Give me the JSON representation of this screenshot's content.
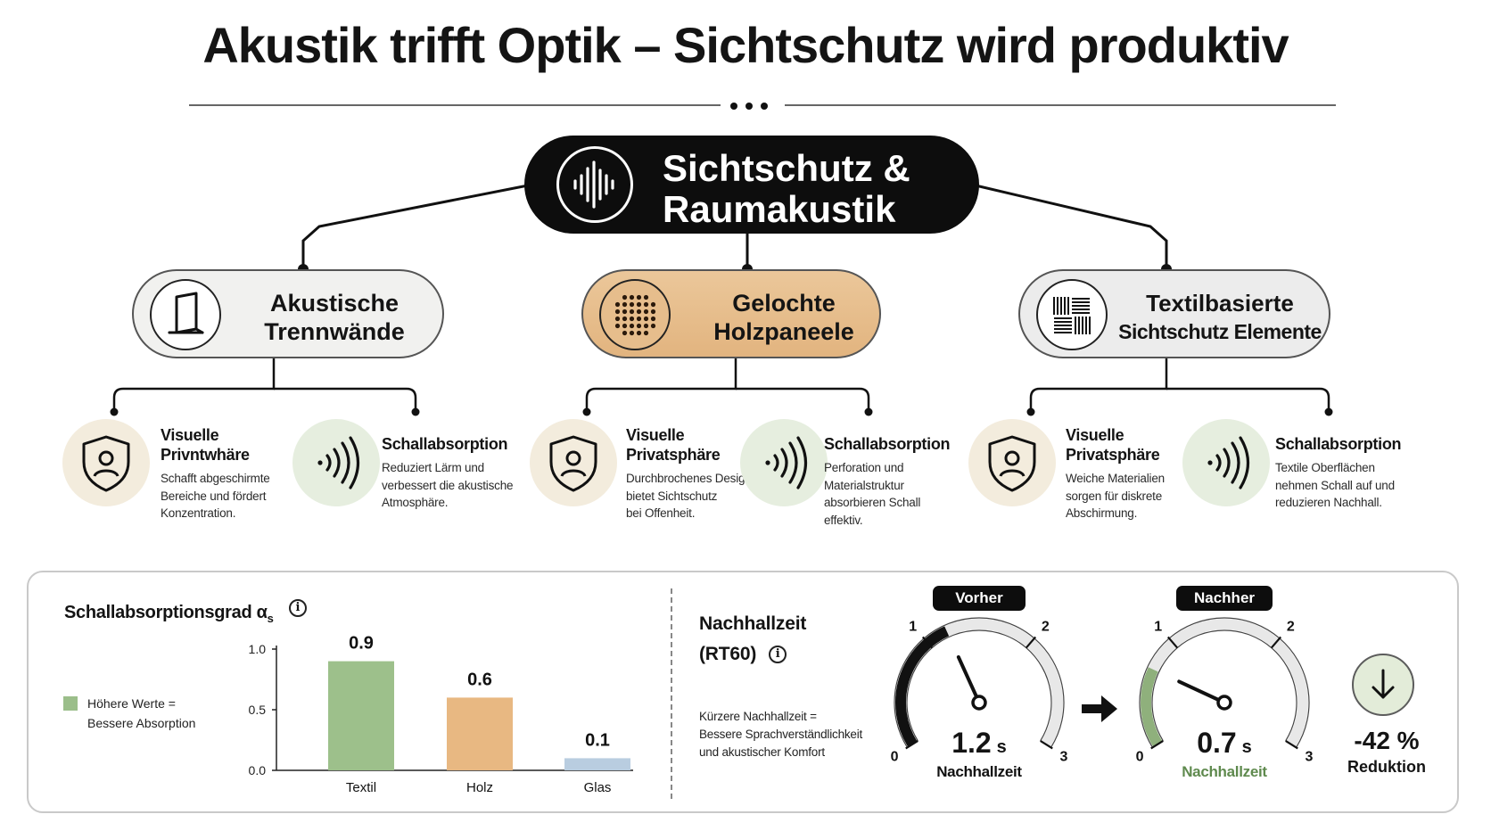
{
  "title": "Akustik trifft Optik – Sichtschutz wird produktiv",
  "hub": {
    "title_line1": "Sichtschutz &",
    "title_line2": "Raumakustik",
    "icon": "sound-wave-icon"
  },
  "categories": [
    {
      "title_line1": "Akustische",
      "title_line2": "Trennwände",
      "icon": "partition-wall-icon",
      "features": [
        {
          "title_line1": "Visuelle",
          "title_line2": "Privntwhäre",
          "desc": [
            "Schafft abgeschirmte",
            "Bereiche und fördert",
            "Konzentration."
          ],
          "icon": "shield-user-icon"
        },
        {
          "title_line1": "Schallabsorption",
          "title_line2": "",
          "desc": [
            "Reduziert Lärm und",
            "verbessert die akustische",
            "Atmosphäre."
          ],
          "icon": "sound-waves-icon"
        }
      ]
    },
    {
      "title_line1": "Gelochte",
      "title_line2": "Holzpaneele",
      "icon": "perforated-panel-icon",
      "features": [
        {
          "title_line1": "Visuelle",
          "title_line2": "Privatsphäre",
          "desc": [
            "Durchbrochenes Design",
            "bietet Sichtschutz",
            "bei Offenheit."
          ],
          "icon": "shield-user-icon"
        },
        {
          "title_line1": "Schallabsorption",
          "title_line2": "",
          "desc": [
            "Perforation und",
            "Materialstruktur",
            "absorbieren Schall",
            "effektiv."
          ],
          "icon": "sound-waves-icon"
        }
      ]
    },
    {
      "title_line1": "Textilbasierte",
      "title_line2": "Sichtschutz Elemente",
      "icon": "textile-weave-icon",
      "features": [
        {
          "title_line1": "Visuelle",
          "title_line2": "Privatsphäre",
          "desc": [
            "Weiche Materialien",
            "sorgen für diskrete",
            "Abschirmung."
          ],
          "icon": "shield-user-icon"
        },
        {
          "title_line1": "Schallabsorption",
          "title_line2": "",
          "desc": [
            "Textile Oberflächen",
            "nehmen Schall auf und",
            "reduzieren Nachhall."
          ],
          "icon": "sound-waves-icon"
        }
      ]
    }
  ],
  "absorption": {
    "title": "Schallabsorptionsgrad α",
    "title_sub": "s",
    "info": "i",
    "legend_line1": "Höhere Werte =",
    "legend_line2": "Bessere Absorption"
  },
  "chart_data": {
    "type": "bar",
    "title": "Schallabsorptionsgrad αs",
    "categories": [
      "Textil",
      "Holz",
      "Glas"
    ],
    "values": [
      0.9,
      0.6,
      0.1
    ],
    "value_labels": [
      "0.9",
      "0.6",
      "0.1"
    ],
    "colors": [
      "#9dc08b",
      "#e8b882",
      "#b9cde0"
    ],
    "ylim": [
      0,
      1.0
    ],
    "yticks": [
      "1.0",
      "0.5",
      "0.0"
    ],
    "grid": false,
    "legend": "left"
  },
  "reverb": {
    "title_line1": "Nachhallzeit",
    "title_line2": "(RT60)",
    "info": "i",
    "desc": [
      "Kürzere Nachhallzeit =",
      "Bessere Sprachverständlichkeit",
      "und akustischer Komfort"
    ],
    "before": {
      "label": "Vorher",
      "value": 1.2,
      "value_text": "1.2",
      "unit": "s",
      "name": "Nachhallzeit",
      "ticks": [
        "0",
        "1",
        "2",
        "3"
      ],
      "accent": "#111111"
    },
    "after": {
      "label": "Nachher",
      "value": 0.7,
      "value_text": "0.7",
      "unit": "s",
      "name": "Nachhallzeit",
      "ticks": [
        "0",
        "1",
        "2",
        "3"
      ],
      "accent": "#8fb07c"
    },
    "arrow_icon": "arrow-right-icon",
    "reduction_icon": "arrow-down-icon",
    "reduction_value": "-42 %",
    "reduction_label": "Reduktion"
  },
  "colors": {
    "dark": "#0d0d0d",
    "green": "#9dc08b",
    "wood": "#e8b882",
    "glass": "#b9cde0",
    "green_text": "#5f8a4e"
  }
}
